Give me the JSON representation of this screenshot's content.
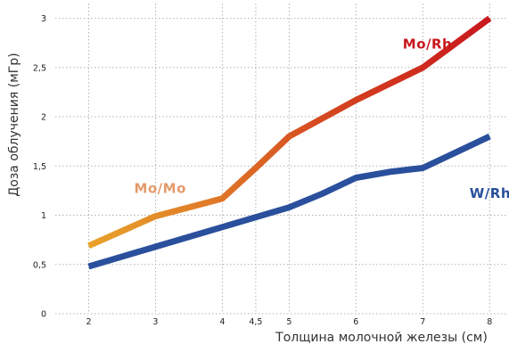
{
  "chart_data": {
    "type": "line",
    "title": "",
    "xlabel": "Толщина молочной железы (см)",
    "ylabel": "Доза облучения (мГр)",
    "xlim": [
      1.5,
      8.25
    ],
    "ylim": [
      0,
      3.15
    ],
    "x_ticks": [
      2,
      3,
      4,
      4.5,
      5,
      6,
      7,
      8
    ],
    "x_tick_labels": [
      "2",
      "3",
      "4",
      "4,5",
      "5",
      "6",
      "7",
      "8"
    ],
    "y_ticks": [
      0,
      0.5,
      1,
      1.5,
      2,
      2.5,
      3
    ],
    "y_tick_labels": [
      "0",
      "0,5",
      "1",
      "1,5",
      "2",
      "2,5",
      "3"
    ],
    "grid": true,
    "series": [
      {
        "name": "W/Rh",
        "color": "#2a4f9c",
        "x": [
          2,
          3,
          4,
          5,
          5.5,
          6,
          6.5,
          7,
          8
        ],
        "y": [
          0.48,
          0.68,
          0.88,
          1.08,
          1.22,
          1.38,
          1.44,
          1.48,
          1.8
        ]
      },
      {
        "name": "Mo/Mo → Mo/Rh",
        "color_start": "#e8a22a",
        "color_end": "#c8161d",
        "x": [
          2,
          3,
          3.5,
          4,
          4.5,
          5,
          6,
          7,
          7.5,
          8
        ],
        "y": [
          0.69,
          0.99,
          1.08,
          1.17,
          1.48,
          1.8,
          2.17,
          2.5,
          2.75,
          3.0
        ]
      }
    ],
    "annotations": [
      {
        "text": "Mo/Rh",
        "color": "#c8161d",
        "x": 6.7,
        "y": 2.74
      },
      {
        "text": "Mo/Mo",
        "color": "#e49a6c",
        "x": 2.68,
        "y": 1.27
      },
      {
        "text": "W/Rh",
        "color": "#2a4f9c",
        "x": 7.7,
        "y": 1.22
      }
    ]
  }
}
